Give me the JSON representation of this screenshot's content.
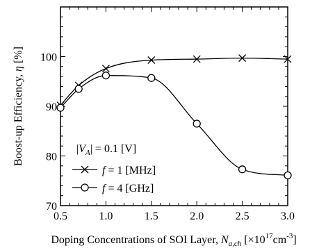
{
  "chart_data": {
    "type": "line",
    "ylabel_main": "Boost-up Efficiency, ",
    "ylabel_sym": "η",
    "ylabel_unit": " [%]",
    "xlabel_main": "Doping Concentrations of SOI Layer, ",
    "xlabel_sym": "N",
    "xlabel_sub": "a,ch",
    "xlabel_unit_open": " [×10",
    "xlabel_unit_exp": "17",
    "xlabel_unit_cm": "cm",
    "xlabel_unit_cmexp": "-3",
    "xlabel_unit_close": "]",
    "xlim": [
      0.5,
      3.0
    ],
    "ylim": [
      70,
      110
    ],
    "xticks": [
      "0.5",
      "1.0",
      "1.5",
      "2.0",
      "2.5",
      "3.0"
    ],
    "yticks": [
      "70",
      "80",
      "90",
      "100"
    ],
    "legend_position": "lower-left",
    "legend_title": {
      "open": "|",
      "sym": "V",
      "sub": "A",
      "rest": "| = 0.1 [V]"
    },
    "series": [
      {
        "name": "f = 1 [MHz]",
        "legend_sym": "f",
        "legend_rest": " = 1 [MHz]",
        "marker": "x",
        "x": [
          0.5,
          0.7,
          1.0,
          1.5,
          2.0,
          2.5,
          3.0
        ],
        "y": [
          90.2,
          94.2,
          97.6,
          99.3,
          99.5,
          99.7,
          99.5
        ]
      },
      {
        "name": "f = 4 [GHz]",
        "legend_sym": "f",
        "legend_rest": " = 4 [GHz]",
        "marker": "o",
        "x": [
          0.5,
          0.7,
          1.0,
          1.5,
          2.0,
          2.5,
          3.0
        ],
        "y": [
          89.7,
          93.5,
          96.2,
          95.7,
          86.5,
          77.3,
          76.1
        ]
      }
    ]
  }
}
